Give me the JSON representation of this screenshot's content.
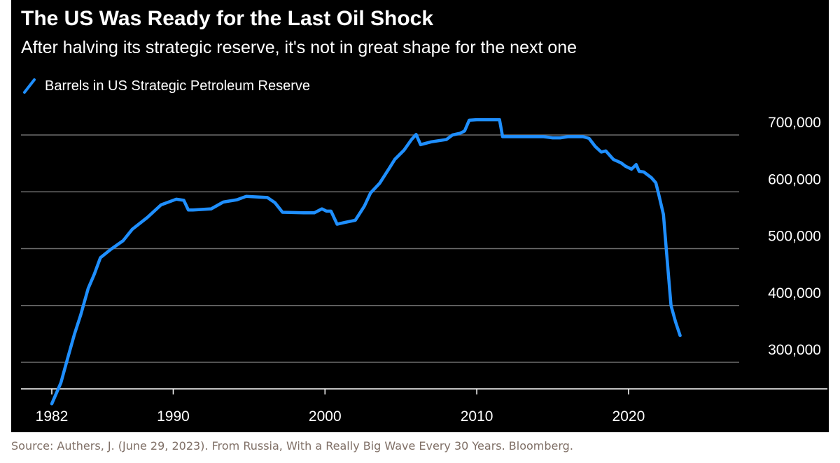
{
  "page": {
    "source": "Source: Authers, J. (June 29, 2023). From Russia, With a Really Big Wave Every 30 Years. Bloomberg."
  },
  "colors": {
    "background": "#000000",
    "series": "#1f8fff",
    "gridline": "#6e6e6e",
    "text": "#ffffff"
  },
  "chart_data": {
    "type": "line",
    "title": "The US Was Ready for the Last Oil Shock",
    "subtitle": "After halving its strategic reserve, it's not in great shape for the next one",
    "xlabel": "",
    "ylabel": "",
    "xlim": [
      1982,
      2026
    ],
    "ylim": [
      270000,
      730000
    ],
    "x_ticks": [
      1982,
      1990,
      2000,
      2010,
      2020
    ],
    "x_tick_labels": [
      "1982",
      "1990",
      "2000",
      "2010",
      "2020"
    ],
    "y_ticks": [
      300000,
      400000,
      500000,
      600000,
      700000
    ],
    "y_tick_labels": [
      "300,000",
      "400,000",
      "500,000",
      "600,000",
      "700,000"
    ],
    "grid": "horizontal",
    "legend": "top-left",
    "series": [
      {
        "name": "Barrels in US Strategic Petroleum Reserve",
        "color": "#1f8fff",
        "x": [
          1982.0,
          1982.6,
          1983.0,
          1983.5,
          1983.9,
          1984.4,
          1984.8,
          1985.2,
          1985.9,
          1986.7,
          1987.3,
          1988.3,
          1989.2,
          1990.2,
          1990.7,
          1991.0,
          1991.3,
          1992.5,
          1993.3,
          1994.2,
          1994.8,
          1996.2,
          1996.7,
          1997.2,
          1998.6,
          1999.3,
          1999.8,
          2000.1,
          2000.4,
          2000.8,
          2001.3,
          2002.0,
          2002.6,
          2003.0,
          2003.6,
          2004.2,
          2004.6,
          2005.2,
          2005.7,
          2006.0,
          2006.3,
          2007.0,
          2008.0,
          2008.4,
          2008.9,
          2009.2,
          2009.5,
          2010.0,
          2011.0,
          2011.5,
          2011.7,
          2013.0,
          2014.0,
          2014.4,
          2015.0,
          2015.5,
          2016.0,
          2017.0,
          2017.4,
          2017.8,
          2018.2,
          2018.5,
          2019.0,
          2019.5,
          2019.8,
          2020.2,
          2020.5,
          2020.7,
          2021.0,
          2021.5,
          2021.8,
          2022.0,
          2022.3,
          2022.5,
          2022.8,
          2023.1,
          2023.4
        ],
        "y": [
          227000,
          264000,
          303000,
          350000,
          383000,
          430000,
          455000,
          484000,
          499000,
          514000,
          534000,
          555000,
          577000,
          587000,
          585000,
          568000,
          568000,
          570000,
          582000,
          586000,
          592000,
          590000,
          581000,
          564000,
          563000,
          563000,
          570000,
          566000,
          566000,
          543000,
          546000,
          550000,
          575000,
          598000,
          615000,
          640000,
          657000,
          673000,
          692000,
          701000,
          683000,
          688000,
          692000,
          700000,
          703000,
          707000,
          726000,
          727000,
          727000,
          727000,
          697000,
          697000,
          697000,
          697000,
          695000,
          695000,
          697000,
          697000,
          694000,
          680000,
          670000,
          672000,
          657000,
          651000,
          645000,
          640000,
          648000,
          636000,
          635000,
          625000,
          616000,
          594000,
          560000,
          495000,
          400000,
          371000,
          347000
        ]
      }
    ]
  }
}
